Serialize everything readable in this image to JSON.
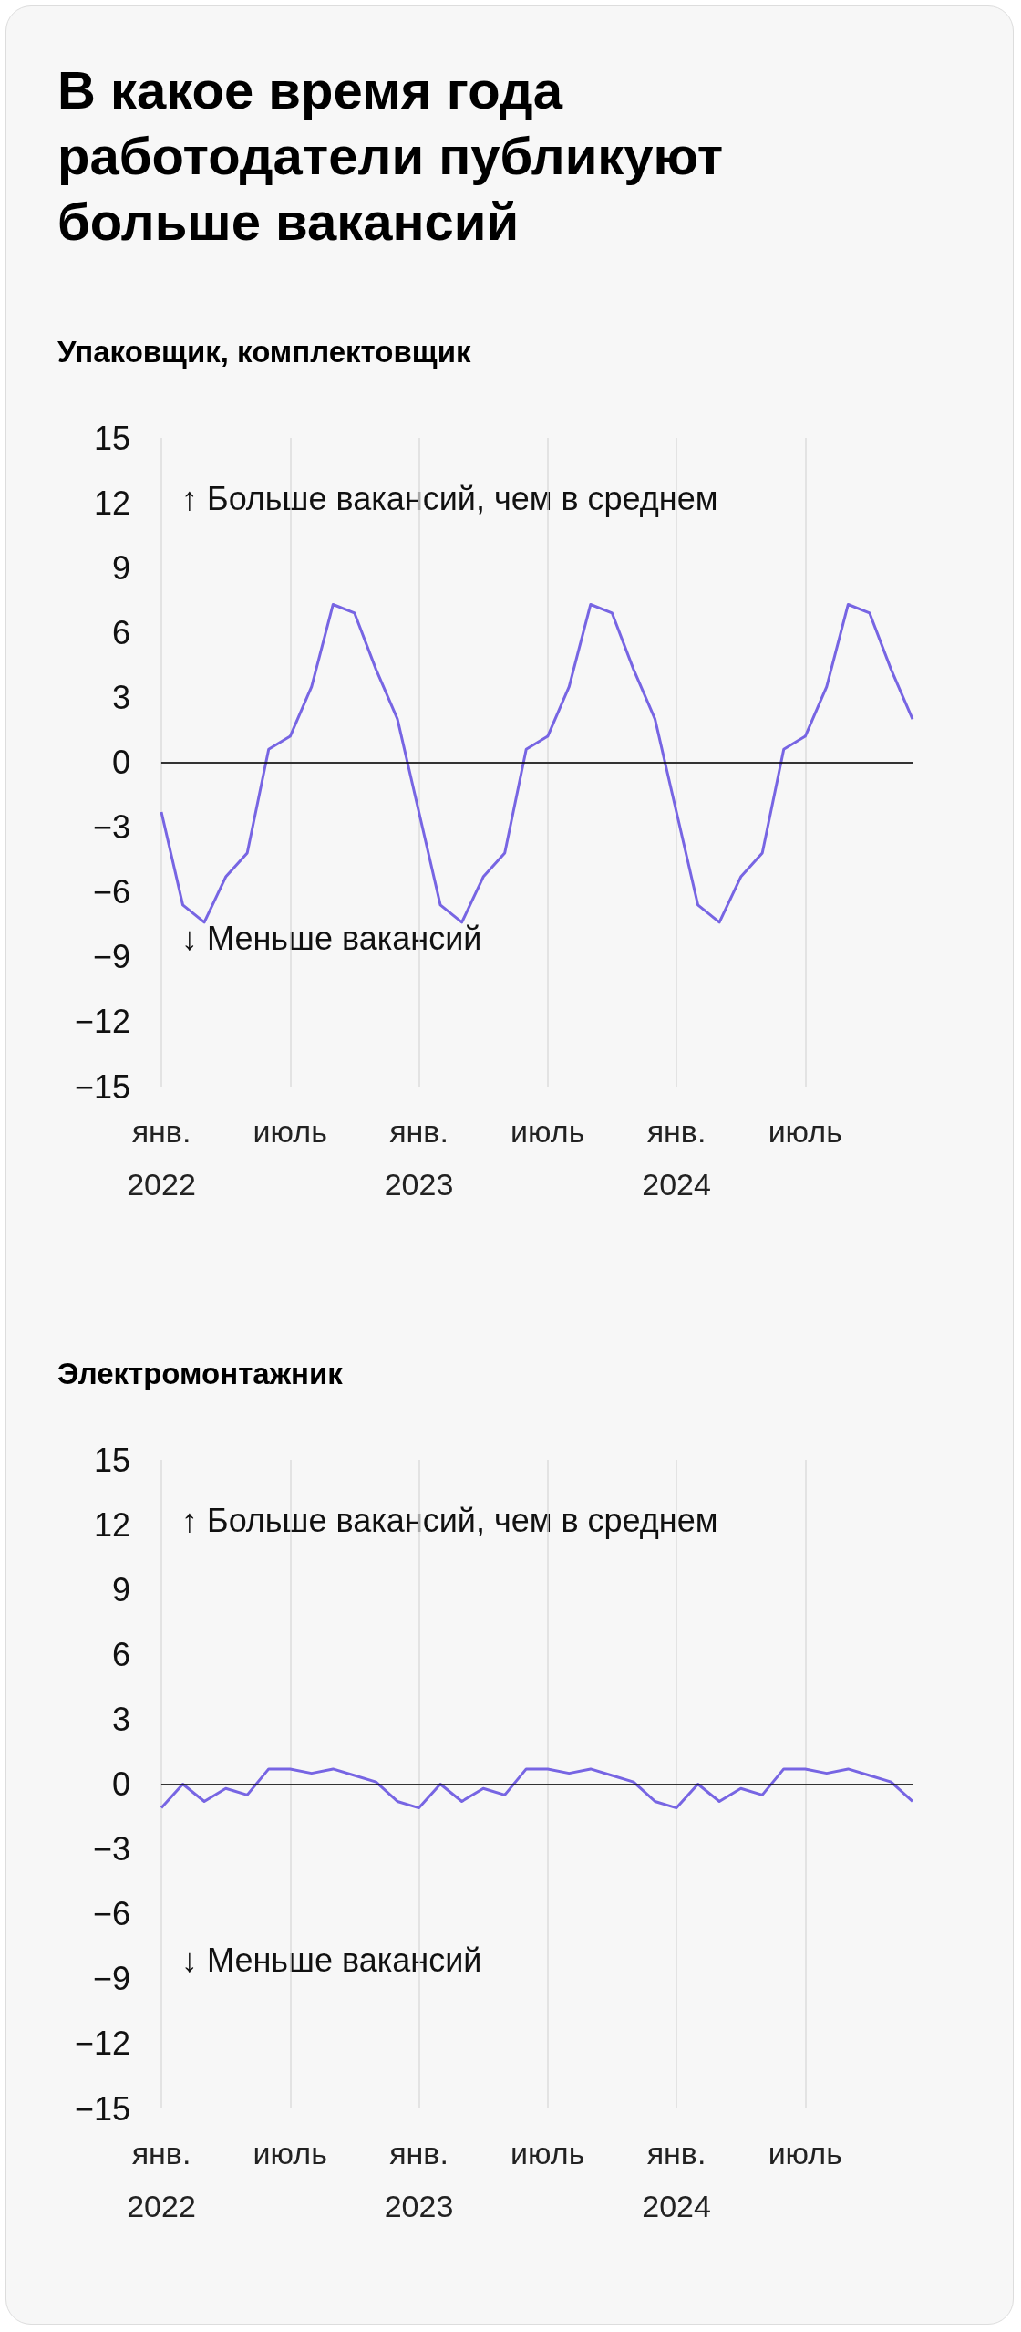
{
  "chart_data": [
    {
      "type": "line",
      "title": "В какое время года работодатели публикуют больше вакансий",
      "subtitle": "Упаковщик, комплектовщик",
      "categories": [
        "янв.\n2022",
        null,
        null,
        null,
        null,
        null,
        "июль",
        null,
        null,
        null,
        null,
        null,
        "янв.\n2023",
        null,
        null,
        null,
        null,
        null,
        "июль",
        null,
        null,
        null,
        null,
        null,
        "янв.\n2024",
        null,
        null,
        null,
        null,
        null,
        "июль",
        null,
        null,
        null,
        null,
        null
      ],
      "series": [
        {
          "color": "#7765e3",
          "values": [
            -2.3,
            -6.6,
            -7.4,
            -5.3,
            -4.2,
            0.6,
            1.2,
            3.5,
            7.3,
            6.9,
            4.3,
            2.0,
            -2.3,
            -6.6,
            -7.4,
            -5.3,
            -4.2,
            0.6,
            1.2,
            3.5,
            7.3,
            6.9,
            4.3,
            2.0,
            -2.3,
            -6.6,
            -7.4,
            -5.3,
            -4.2,
            0.6,
            1.2,
            3.5,
            7.3,
            6.9,
            4.3,
            2.0
          ]
        }
      ],
      "ylim": [
        -15,
        15
      ],
      "yticks": [
        -15,
        -12,
        -9,
        -6,
        -3,
        0,
        3,
        6,
        9,
        12,
        15
      ],
      "grid": "x",
      "marker": "none",
      "line_style": "solid",
      "ref_lines": [
        {
          "axis": "y",
          "value": 0,
          "color": "#000000"
        }
      ],
      "annotations": [
        "↑ Больше вакансий, чем в среднем",
        "↓ Меньше вакансий"
      ]
    },
    {
      "type": "line",
      "subtitle": "Электромонтажник",
      "categories": [
        "янв.\n2022",
        null,
        null,
        null,
        null,
        null,
        "июль",
        null,
        null,
        null,
        null,
        null,
        "янв.\n2023",
        null,
        null,
        null,
        null,
        null,
        "июль",
        null,
        null,
        null,
        null,
        null,
        "янв.\n2024",
        null,
        null,
        null,
        null,
        null,
        "июль",
        null,
        null,
        null,
        null,
        null
      ],
      "series": [
        {
          "color": "#7765e3",
          "values": [
            -1.1,
            0,
            -0.8,
            -0.2,
            -0.5,
            0.7,
            0.7,
            0.5,
            0.7,
            0.4,
            0.1,
            -0.8,
            -1.1,
            0,
            -0.8,
            -0.2,
            -0.5,
            0.7,
            0.7,
            0.5,
            0.7,
            0.4,
            0.1,
            -0.8,
            -1.1,
            0,
            -0.8,
            -0.2,
            -0.5,
            0.7,
            0.7,
            0.5,
            0.7,
            0.4,
            0.1,
            -0.8
          ]
        }
      ],
      "ylim": [
        -15,
        15
      ],
      "yticks": [
        -15,
        -12,
        -9,
        -6,
        -3,
        0,
        3,
        6,
        9,
        12,
        15
      ],
      "grid": "x",
      "marker": "none",
      "line_style": "solid",
      "ref_lines": [
        {
          "axis": "y",
          "value": 0,
          "color": "#000000"
        }
      ],
      "annotations": [
        "↑ Больше вакансий, чем в среднем",
        "↓ Меньше вакансий"
      ]
    }
  ]
}
